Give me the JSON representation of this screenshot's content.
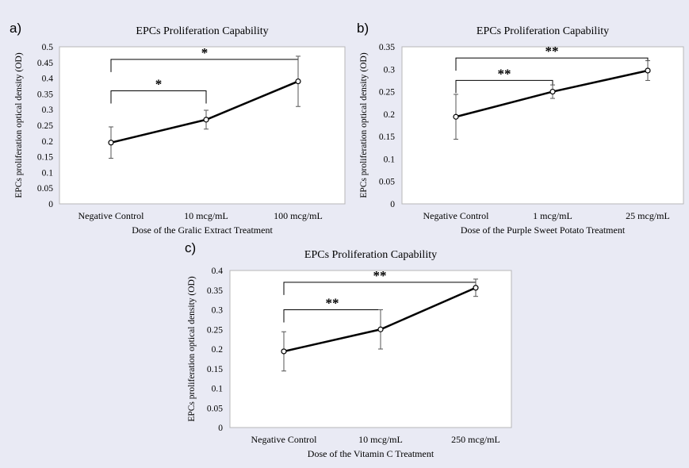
{
  "chart_data": [
    {
      "type": "line",
      "panel_label": "a)",
      "title": "EPCs Proliferation  Capability",
      "xlabel": "Dose of the Gralic Extract Treatment",
      "ylabel": "EPCs proliferation optical density (OD)",
      "categories": [
        "Negative Control",
        "10 mcg/mL",
        "100 mcg/mL"
      ],
      "values": [
        0.195,
        0.268,
        0.39
      ],
      "error": [
        0.05,
        0.03,
        0.08
      ],
      "ylim": [
        0,
        0.5
      ],
      "yticks": [
        "0",
        "0.05",
        "0.1",
        "0.15",
        "0.2",
        "0.25",
        "0.3",
        "0.35",
        "0.4",
        "0.45",
        "0.5"
      ],
      "grid": false,
      "annotations": [
        {
          "from": 0,
          "to": 1,
          "level": 0.36,
          "label": "*"
        },
        {
          "from": 0,
          "to": 2,
          "level": 0.46,
          "label": "*"
        }
      ]
    },
    {
      "type": "line",
      "panel_label": "b)",
      "title": "EPCs Proliferation  Capability",
      "xlabel": "Dose of the Purple Sweet Potato Treatment",
      "ylabel": "EPCs proliferation optical density (OD)",
      "categories": [
        "Negative Control",
        "1 mcg/mL",
        "25 mcg/mL"
      ],
      "values": [
        0.194,
        0.25,
        0.297
      ],
      "error": [
        0.05,
        0.015,
        0.022
      ],
      "ylim": [
        0,
        0.35
      ],
      "yticks": [
        "0",
        "0.05",
        "0.1",
        "0.15",
        "0.2",
        "0.25",
        "0.3",
        "0.35"
      ],
      "grid": false,
      "annotations": [
        {
          "from": 0,
          "to": 1,
          "level": 0.275,
          "label": "**"
        },
        {
          "from": 0,
          "to": 2,
          "level": 0.325,
          "label": "**"
        }
      ]
    },
    {
      "type": "line",
      "panel_label": "c)",
      "title": "EPCs Proliferation  Capability",
      "xlabel": "Dose of the Vitamin C Treatment",
      "ylabel": "EPCs proliferation optical density (OD)",
      "categories": [
        "Negative Control",
        "10 mcg/mL",
        "250 mcg/mL"
      ],
      "values": [
        0.194,
        0.25,
        0.356
      ],
      "error": [
        0.05,
        0.05,
        0.022
      ],
      "ylim": [
        0,
        0.4
      ],
      "yticks": [
        "0",
        "0.05",
        "0.1",
        "0.15",
        "0.2",
        "0.25",
        "0.3",
        "0.35",
        "0.4"
      ],
      "grid": false,
      "annotations": [
        {
          "from": 0,
          "to": 1,
          "level": 0.3,
          "label": "**"
        },
        {
          "from": 0,
          "to": 2,
          "level": 0.37,
          "label": "**"
        }
      ]
    }
  ]
}
